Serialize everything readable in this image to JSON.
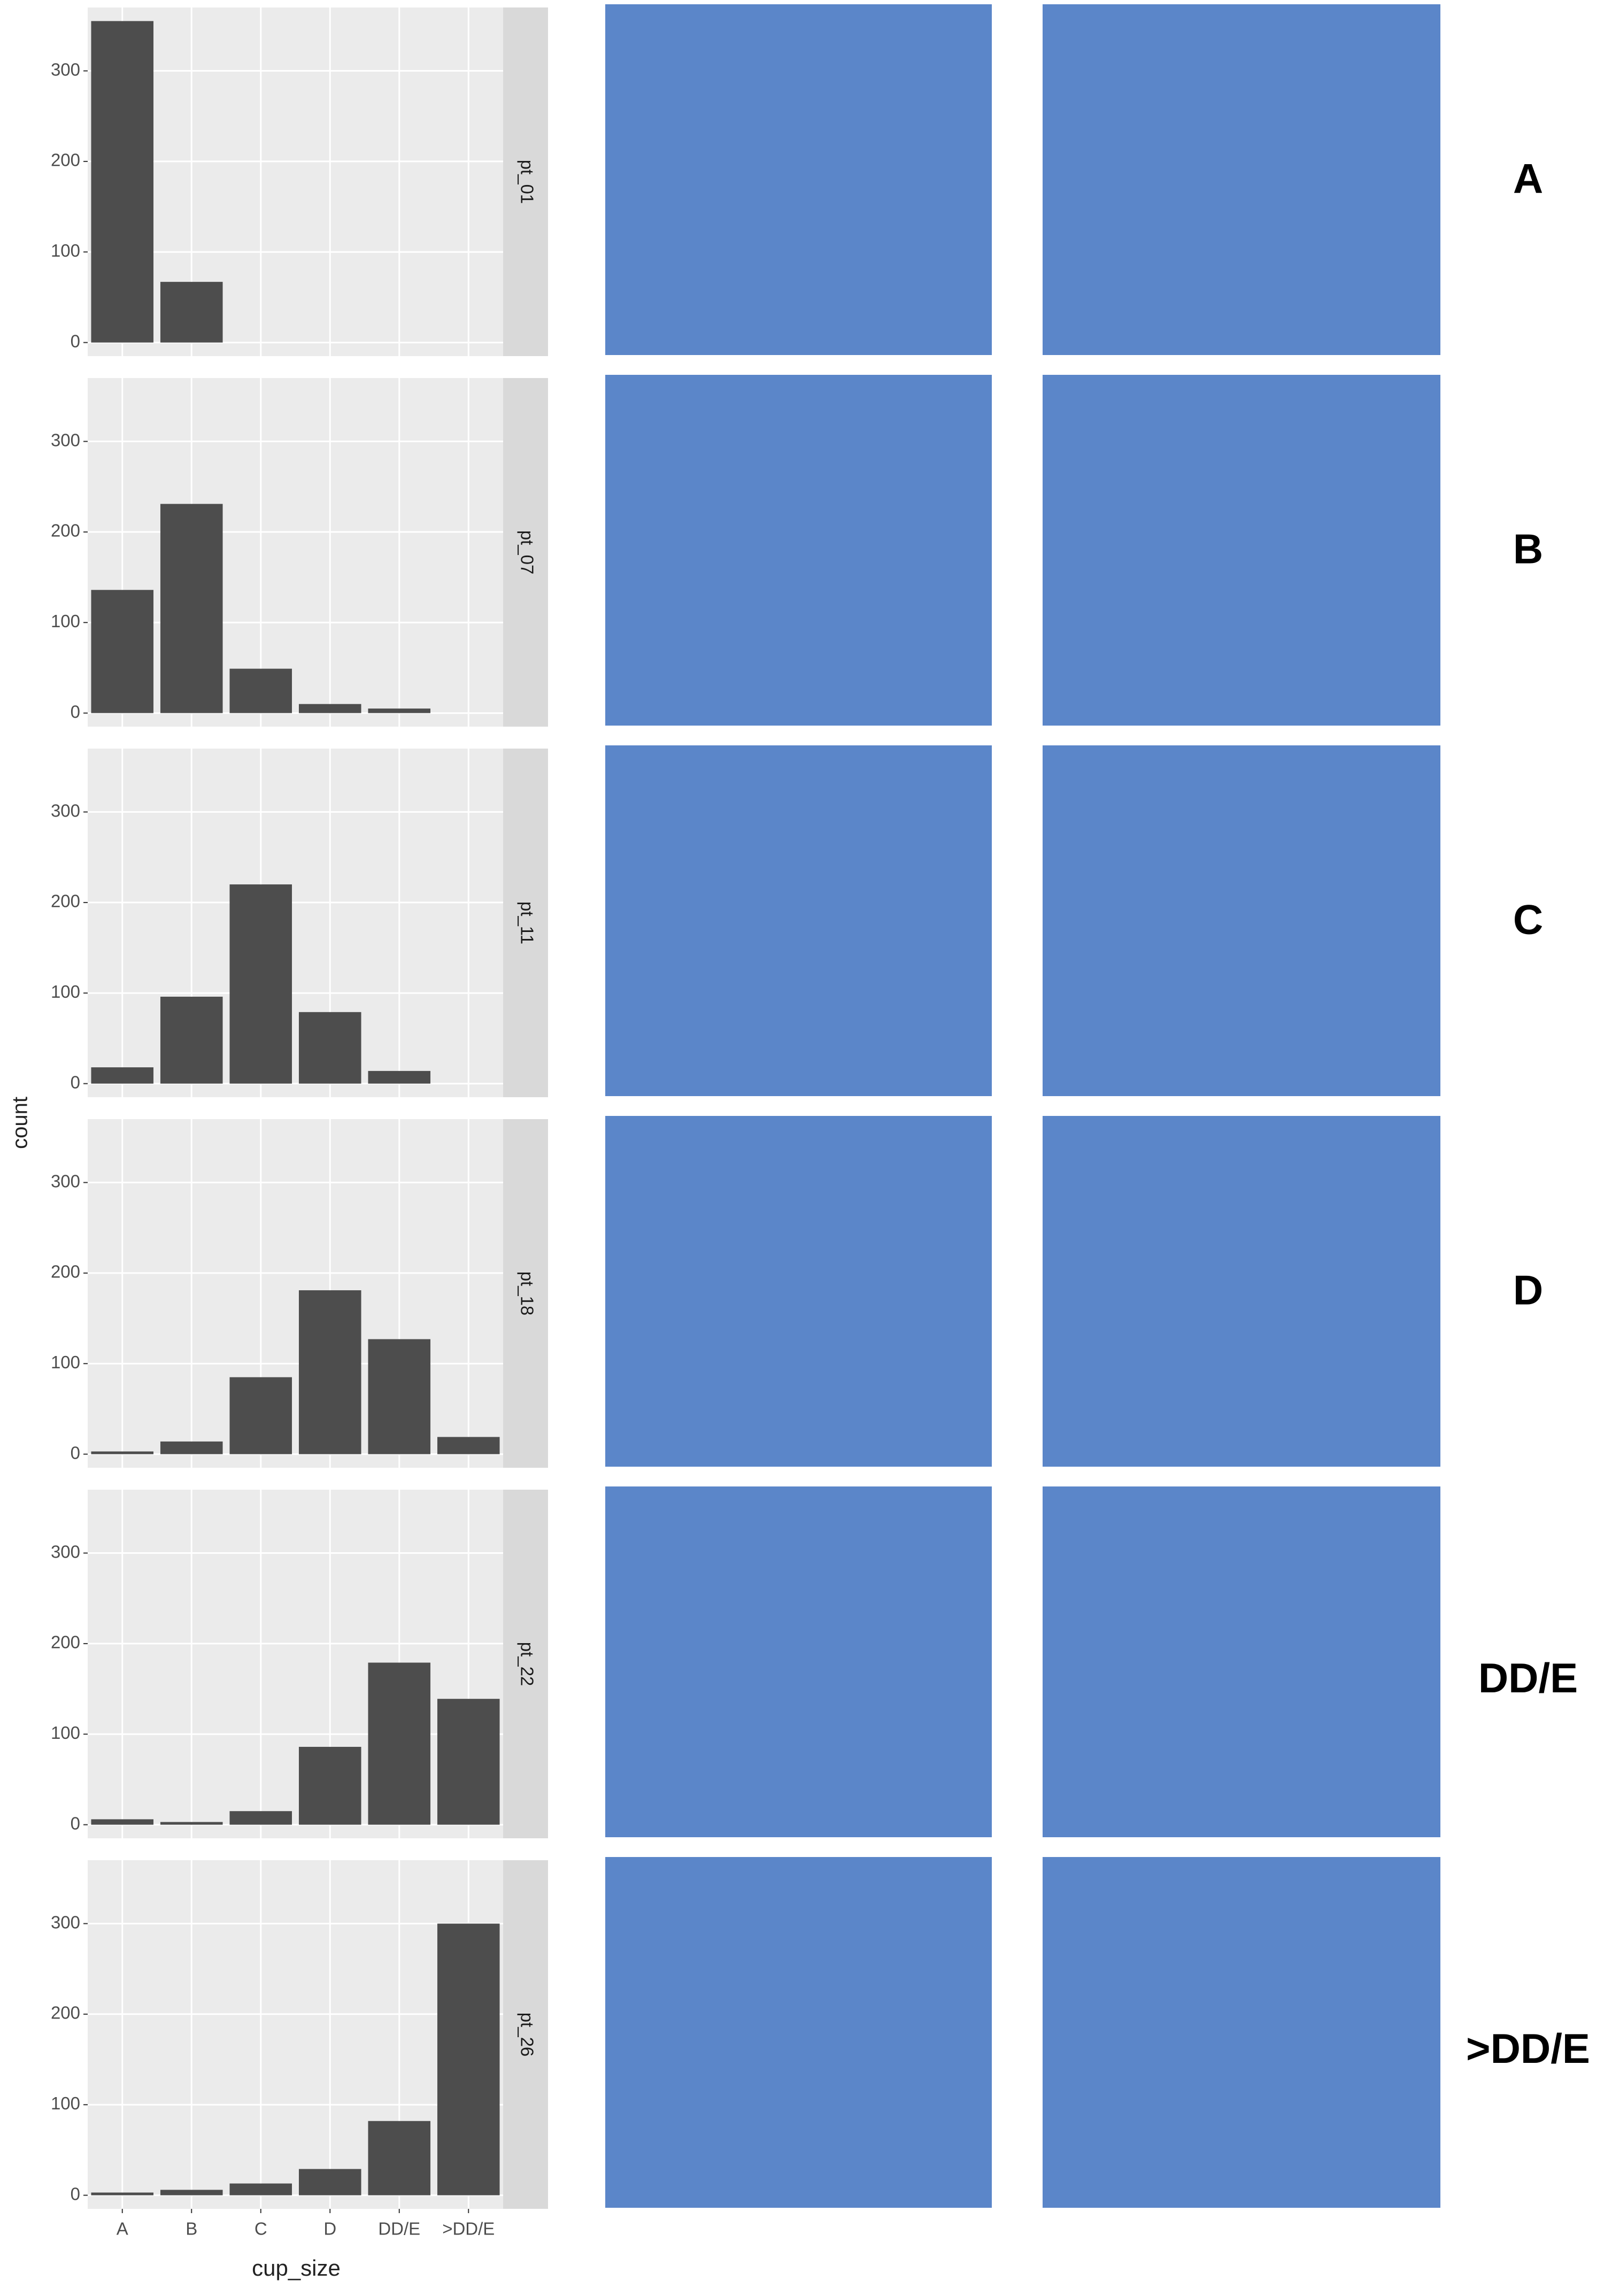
{
  "chart_data": {
    "type": "bar",
    "categories": [
      "A",
      "B",
      "C",
      "D",
      "DD/E",
      ">DD/E"
    ],
    "panels": [
      {
        "name": "pt_01",
        "values": [
          355,
          67,
          0,
          0,
          0,
          0
        ]
      },
      {
        "name": "pt_07",
        "values": [
          136,
          231,
          49,
          10,
          5,
          0
        ]
      },
      {
        "name": "pt_11",
        "values": [
          18,
          96,
          220,
          79,
          14,
          0
        ]
      },
      {
        "name": "pt_18",
        "values": [
          3,
          14,
          85,
          181,
          127,
          19
        ]
      },
      {
        "name": "pt_22",
        "values": [
          6,
          3,
          15,
          86,
          179,
          139
        ]
      },
      {
        "name": "pt_26",
        "values": [
          3,
          6,
          13,
          29,
          82,
          300
        ]
      }
    ],
    "color": "#4d4d4d",
    "ylim": [
      -15,
      370
    ],
    "yticks": [
      0,
      100,
      200,
      300
    ],
    "grid": true,
    "y_label": "count",
    "x_label": "cup_size"
  },
  "row_labels": [
    "A",
    "B",
    "C",
    "D",
    "DD/E",
    ">DD/E"
  ]
}
